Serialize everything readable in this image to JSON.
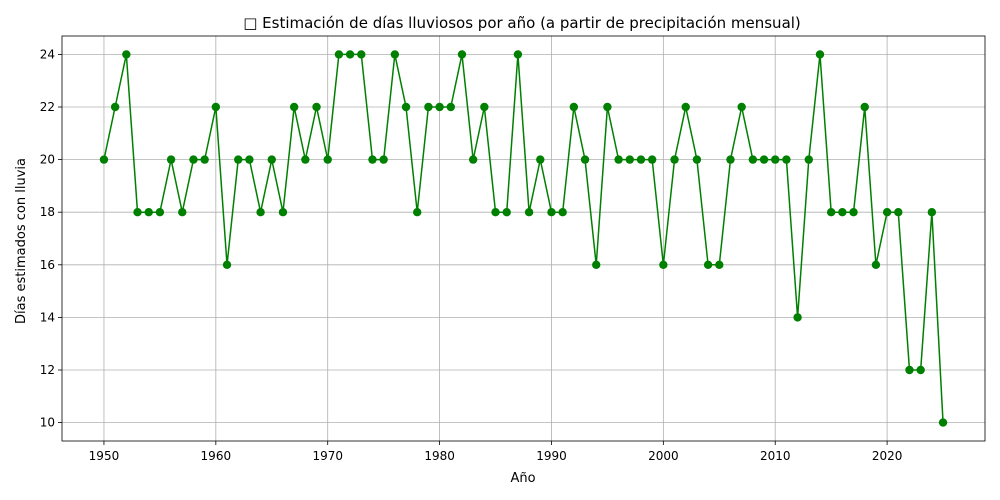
{
  "chart_data": {
    "type": "line",
    "title": "□ Estimación de días lluviosos por año (a partir de precipitación mensual)",
    "xlabel": "Año",
    "ylabel": "Días estimados con lluvia",
    "xlim": [
      1946.25,
      2028.75
    ],
    "ylim": [
      9.3,
      24.7
    ],
    "xticks": [
      1950,
      1960,
      1970,
      1980,
      1990,
      2000,
      2010,
      2020
    ],
    "yticks": [
      10,
      12,
      14,
      16,
      18,
      20,
      22,
      24
    ],
    "grid": true,
    "color": "#008000",
    "x": [
      1950,
      1951,
      1952,
      1953,
      1954,
      1955,
      1956,
      1957,
      1958,
      1959,
      1960,
      1961,
      1962,
      1963,
      1964,
      1965,
      1966,
      1967,
      1968,
      1969,
      1970,
      1971,
      1972,
      1973,
      1974,
      1975,
      1976,
      1977,
      1978,
      1979,
      1980,
      1981,
      1982,
      1983,
      1984,
      1985,
      1986,
      1987,
      1988,
      1989,
      1990,
      1991,
      1992,
      1993,
      1994,
      1995,
      1996,
      1997,
      1998,
      1999,
      2000,
      2001,
      2002,
      2003,
      2004,
      2005,
      2006,
      2007,
      2008,
      2009,
      2010,
      2011,
      2012,
      2013,
      2014,
      2015,
      2016,
      2017,
      2018,
      2019,
      2020,
      2021,
      2022,
      2023,
      2024,
      2025
    ],
    "y": [
      20,
      22,
      24,
      18,
      18,
      18,
      20,
      18,
      20,
      20,
      22,
      16,
      20,
      20,
      18,
      20,
      18,
      22,
      20,
      22,
      20,
      24,
      24,
      24,
      20,
      20,
      24,
      22,
      18,
      22,
      22,
      22,
      24,
      20,
      22,
      18,
      18,
      24,
      18,
      20,
      18,
      18,
      22,
      20,
      16,
      22,
      20,
      20,
      20,
      20,
      16,
      20,
      22,
      20,
      16,
      16,
      20,
      22,
      20,
      20,
      20,
      20,
      14,
      20,
      24,
      18,
      18,
      18,
      22,
      16,
      18,
      18,
      12,
      12,
      18,
      10
    ]
  }
}
